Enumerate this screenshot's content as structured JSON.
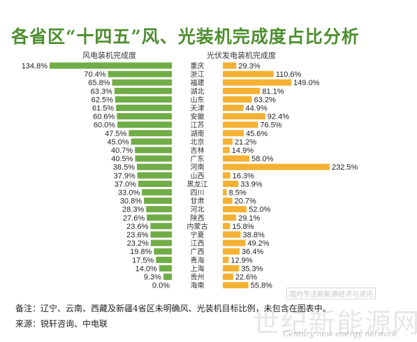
{
  "title": "各省区“十四五”风、光装机完成度占比分析",
  "left_header": "风电装机完成度",
  "right_header": "光伏发电装机完成度",
  "footnote": "备注：辽宁、云南、西藏及新疆4省区未明确风、光装机目标比例，未包含在图表中。",
  "source": "来源：锐轩咨询、中电联",
  "watermark": {
    "cn": "世纪新能源网",
    "en": "Century new energy network",
    "tag": "国内专注新能源经济与资讯"
  },
  "colors": {
    "wind": "#70ad47",
    "solar": "#f5b133",
    "title": "#4e8e2f"
  },
  "chart_data": {
    "type": "bar",
    "orientation": "horizontal-butterfly",
    "categories": [
      "重庆",
      "浙江",
      "福建",
      "湖北",
      "山东",
      "天津",
      "安徽",
      "江苏",
      "湖南",
      "北京",
      "吉林",
      "广东",
      "河南",
      "山西",
      "黑龙江",
      "四川",
      "甘肃",
      "河北",
      "陕西",
      "内蒙古",
      "宁夏",
      "江西",
      "广西",
      "青海",
      "上海",
      "贵州",
      "海南"
    ],
    "series": [
      {
        "name": "风电装机完成度",
        "unit": "%",
        "values": [
          134.8,
          70.4,
          65.8,
          63.3,
          62.5,
          61.5,
          60.6,
          60.0,
          47.5,
          45.0,
          40.7,
          40.5,
          38.5,
          37.9,
          37.0,
          33.0,
          30.8,
          28.3,
          27.6,
          23.6,
          23.6,
          23.2,
          19.8,
          17.5,
          14.0,
          9.3,
          0.0
        ]
      },
      {
        "name": "光伏发电装机完成度",
        "unit": "%",
        "values": [
          29.3,
          110.6,
          149.0,
          81.1,
          63.2,
          44.9,
          92.4,
          76.5,
          45.6,
          21.2,
          14.9,
          58.0,
          232.5,
          16.3,
          33.9,
          8.5,
          20.7,
          52.0,
          29.1,
          15.8,
          38.8,
          49.2,
          36.4,
          12.9,
          35.3,
          22.6,
          55.8
        ]
      }
    ],
    "legend": "column headers above each side"
  }
}
